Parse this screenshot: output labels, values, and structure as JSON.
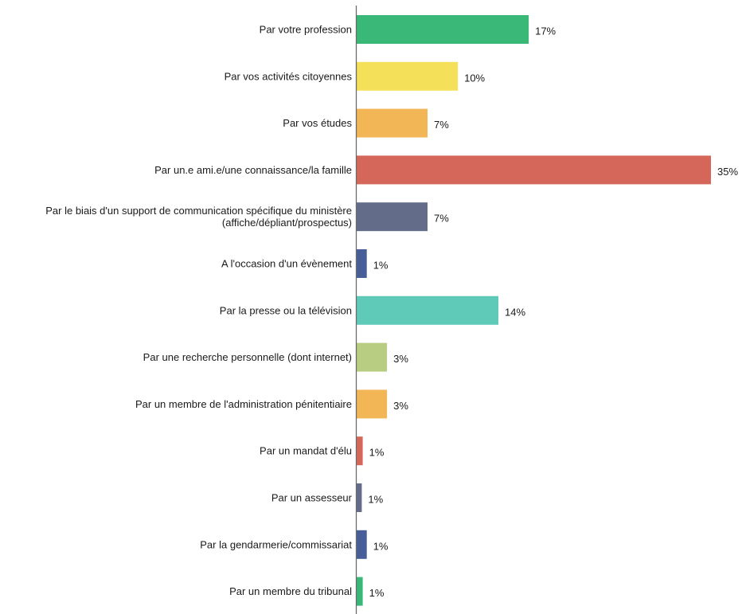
{
  "chart_data": {
    "type": "bar",
    "orientation": "horizontal",
    "categories": [
      [
        "Par votre profession"
      ],
      [
        "Par vos activités citoyennes"
      ],
      [
        "Par vos études"
      ],
      [
        "Par un.e ami.e/une connaissance/la famille"
      ],
      [
        "Par le biais d'un support de communication spécifique du ministère",
        "(affiche/dépliant/prospectus)"
      ],
      [
        "A l'occasion d'un évènement"
      ],
      [
        "Par la presse ou la télévision"
      ],
      [
        "Par une recherche personnelle (dont internet)"
      ],
      [
        "Par un membre de l'administration pénitentiaire"
      ],
      [
        "Par un mandat d'élu"
      ],
      [
        "Par un assesseur"
      ],
      [
        "Par la gendarmerie/commissariat"
      ],
      [
        "Par un membre du tribunal"
      ]
    ],
    "values": [
      17,
      10,
      7,
      35,
      7,
      1,
      14,
      3,
      3,
      0.6,
      0.5,
      1,
      0.6
    ],
    "value_labels": [
      "17%",
      "10%",
      "7%",
      "35%",
      "7%",
      "1%",
      "14%",
      "3%",
      "3%",
      "1%",
      "1%",
      "1%",
      "1%"
    ],
    "colors": [
      "#3ab878",
      "#f5e05a",
      "#f2b657",
      "#d5675a",
      "#636d8a",
      "#475e99",
      "#5fcab8",
      "#b9cd82",
      "#f2b657",
      "#d5675a",
      "#636d8a",
      "#475e99",
      "#3ab878"
    ],
    "xlim": [
      0,
      35
    ],
    "grid": false,
    "legend": "none"
  }
}
